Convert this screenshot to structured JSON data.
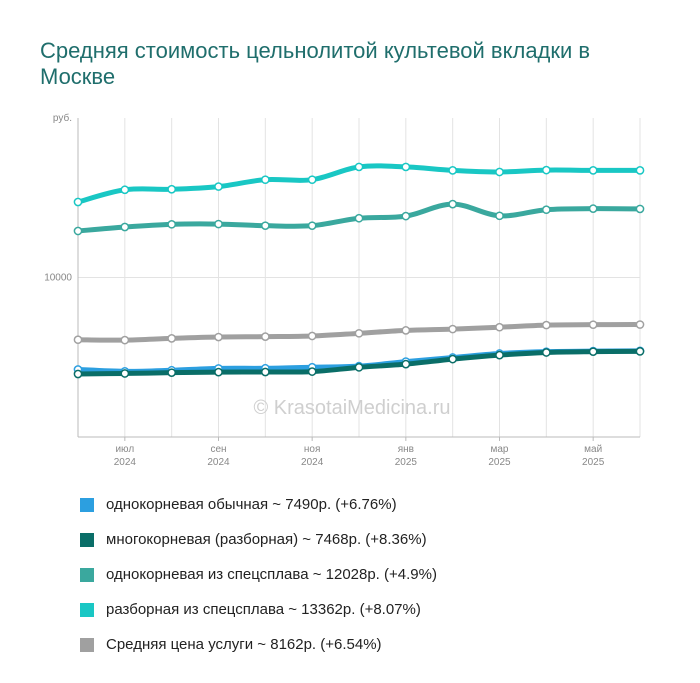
{
  "title": "Средняя стоимость цельнолитой культевой вкладки в Москве",
  "watermark": "© KrasotaiMedicina.ru",
  "chart_data": {
    "type": "line",
    "title": "Средняя стоимость цельнолитой культевой вкладки в Москве",
    "ylabel": "руб.",
    "ylim": [
      4000,
      16000
    ],
    "yticks": [
      {
        "value": 10000,
        "label": "10000"
      }
    ],
    "grid": true,
    "legend": "bottom",
    "x": [
      "2024-05",
      "2024-06",
      "2024-07",
      "2024-08",
      "2024-09",
      "2024-10",
      "2024-11",
      "2024-12",
      "2025-01",
      "2025-02",
      "2025-03",
      "2025-04",
      "2025-05"
    ],
    "xticks": [
      {
        "index": 1,
        "month": "июл",
        "year": "2024"
      },
      {
        "index": 3,
        "month": "сен",
        "year": "2024"
      },
      {
        "index": 5,
        "month": "ноя",
        "year": "2024"
      },
      {
        "index": 7,
        "month": "янв",
        "year": "2025"
      },
      {
        "index": 9,
        "month": "мар",
        "year": "2025"
      },
      {
        "index": 11,
        "month": "май",
        "year": "2025"
      }
    ],
    "series": [
      {
        "name": "Средняя цена услуги",
        "legend": "Средняя цена услуги ~ 8162р. (+6.54%)",
        "color": "#a0a0a0",
        "values": [
          7660,
          7645,
          7710,
          7760,
          7775,
          7800,
          7900,
          8010,
          8060,
          8130,
          8210,
          8225,
          8230
        ]
      },
      {
        "name": "однокорневая обычная",
        "legend": "однокорневая обычная ~ 7490р. (+6.76%)",
        "color": "#2c9fe0",
        "values": [
          6540,
          6470,
          6510,
          6580,
          6585,
          6625,
          6665,
          6835,
          6990,
          7140,
          7210,
          7230,
          7240
        ]
      },
      {
        "name": "многокорневая (разборная)",
        "legend": "многокорневая (разборная) ~ 7468р. (+8.36%)",
        "color": "#0a6e68",
        "values": [
          6370,
          6390,
          6420,
          6440,
          6445,
          6460,
          6620,
          6740,
          6930,
          7080,
          7180,
          7210,
          7220
        ]
      },
      {
        "name": "однокорневая из спецсплава",
        "legend": "однокорневая из спецсплава ~ 12028р. (+4.9%)",
        "color": "#3aa89e",
        "values": [
          11750,
          11900,
          12000,
          12010,
          11950,
          11950,
          12230,
          12310,
          12760,
          12320,
          12550,
          12590,
          12580
        ]
      },
      {
        "name": "разборная из спецсплава",
        "legend": "разборная из спецсплава ~ 13362р. (+8.07%)",
        "color": "#19c7c4",
        "values": [
          12840,
          13300,
          13320,
          13420,
          13680,
          13680,
          14160,
          14160,
          14030,
          13970,
          14040,
          14030,
          14030
        ]
      }
    ]
  }
}
